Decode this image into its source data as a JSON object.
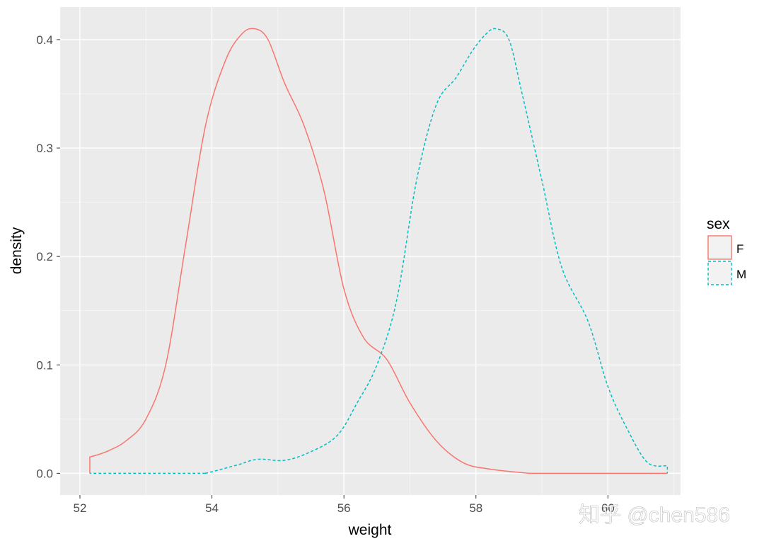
{
  "chart_data": {
    "type": "area",
    "xlabel": "weight",
    "ylabel": "density",
    "xlim": [
      51.7,
      61.1
    ],
    "ylim": [
      -0.02,
      0.43
    ],
    "x_ticks": [
      52,
      54,
      56,
      58,
      60
    ],
    "x_tick_labels": [
      "52",
      "54",
      "56",
      "58",
      "60"
    ],
    "y_ticks": [
      0.0,
      0.1,
      0.2,
      0.3,
      0.4
    ],
    "y_tick_labels": [
      "0.0",
      "0.1",
      "0.2",
      "0.3",
      "0.4"
    ],
    "grid": true,
    "panel_background": "#ebebeb",
    "legend": {
      "title": "sex",
      "position": "right"
    },
    "series": [
      {
        "name": "F",
        "color": "#f8766d",
        "linetype": "solid",
        "x": [
          52.15,
          52.4,
          52.7,
          53.0,
          53.3,
          53.6,
          53.9,
          54.2,
          54.45,
          54.65,
          54.85,
          55.1,
          55.4,
          55.7,
          56.0,
          56.3,
          56.65,
          57.0,
          57.4,
          57.8,
          58.2,
          58.8
        ],
        "values": [
          0.015,
          0.02,
          0.03,
          0.05,
          0.1,
          0.21,
          0.32,
          0.38,
          0.405,
          0.41,
          0.4,
          0.36,
          0.32,
          0.26,
          0.17,
          0.125,
          0.105,
          0.065,
          0.03,
          0.01,
          0.004,
          0.0
        ]
      },
      {
        "name": "M",
        "color": "#00bfc4",
        "linetype": "dashed",
        "x": [
          53.9,
          54.1,
          54.4,
          54.7,
          55.1,
          55.5,
          55.9,
          56.2,
          56.5,
          56.8,
          57.1,
          57.4,
          57.7,
          57.95,
          58.15,
          58.3,
          58.5,
          58.7,
          59.0,
          59.3,
          59.7,
          60.0,
          60.3,
          60.6,
          60.9
        ],
        "values": [
          0.0,
          0.003,
          0.008,
          0.013,
          0.012,
          0.02,
          0.035,
          0.065,
          0.1,
          0.16,
          0.27,
          0.34,
          0.365,
          0.39,
          0.405,
          0.41,
          0.4,
          0.35,
          0.27,
          0.19,
          0.14,
          0.08,
          0.04,
          0.01,
          0.007
        ]
      }
    ]
  },
  "watermark": "知乎 @chen586"
}
